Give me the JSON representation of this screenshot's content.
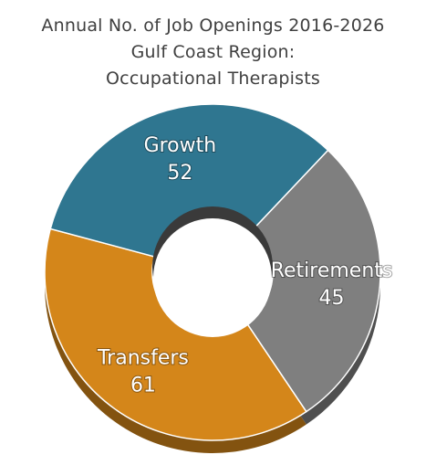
{
  "chart_data": {
    "type": "pie",
    "donut": true,
    "title_lines": [
      "Annual No. of Job Openings 2016-2026",
      "Gulf Coast Region:",
      "Occupational Therapists"
    ],
    "slices": [
      {
        "name": "Transfers",
        "value": 61,
        "color": "#D4861A"
      },
      {
        "name": "Growth",
        "value": 52,
        "color": "#2F7690"
      },
      {
        "name": "Retirements",
        "value": 45,
        "color": "#7F7F7F"
      }
    ],
    "legend": "none",
    "labels_on_slices": true
  }
}
